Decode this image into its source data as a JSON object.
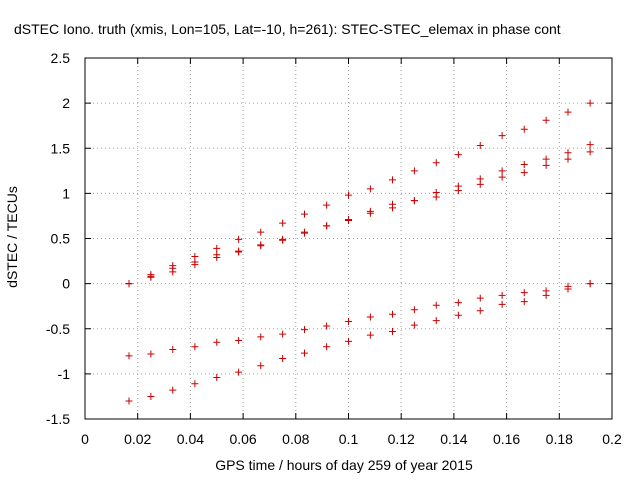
{
  "chart_data": {
    "type": "scatter",
    "title": "dSTEC Iono. truth (xmis, Lon=105, Lat=-10, h=261): STEC-STEC_elemax in phase cont",
    "xlabel": "GPS time / hours of day 259 of year 2015",
    "ylabel": "dSTEC  / TECUs",
    "xlim": [
      0,
      0.2
    ],
    "ylim": [
      -1.5,
      2.5
    ],
    "x_ticks": [
      "0",
      "0.02",
      "0.04",
      "0.06",
      "0.08",
      "0.1",
      "0.12",
      "0.14",
      "0.16",
      "0.18",
      "0.2"
    ],
    "y_ticks": [
      "-1.5",
      "-1",
      "-0.5",
      "0",
      "0.5",
      "1",
      "1.5",
      "2",
      "2.5"
    ],
    "grid": true,
    "legend": "none",
    "marker": "plus",
    "marker_color": "#cc0000",
    "x": [
      0.0167,
      0.025,
      0.0333,
      0.0417,
      0.05,
      0.0583,
      0.0667,
      0.075,
      0.0833,
      0.0917,
      0.1,
      0.1083,
      0.1167,
      0.125,
      0.1333,
      0.1417,
      0.15,
      0.1583,
      0.1667,
      0.175,
      0.1833,
      0.1917
    ],
    "series": [
      {
        "values": [
          0.0,
          0.1,
          0.2,
          0.3,
          0.39,
          0.49,
          0.57,
          0.67,
          0.77,
          0.87,
          0.98,
          1.05,
          1.15,
          1.25,
          1.34,
          1.43,
          1.53,
          1.64,
          1.71,
          1.81,
          1.9,
          2.0
        ]
      },
      {
        "values": [
          0.0,
          0.07,
          0.13,
          0.21,
          0.29,
          0.35,
          0.43,
          0.48,
          0.57,
          0.64,
          0.71,
          0.78,
          0.84,
          0.92,
          0.96,
          1.03,
          1.1,
          1.18,
          1.23,
          1.31,
          1.38,
          1.46
        ]
      },
      {
        "values": [
          0.0,
          0.08,
          0.17,
          0.24,
          0.32,
          0.36,
          0.42,
          0.49,
          0.56,
          0.64,
          0.7,
          0.8,
          0.88,
          0.92,
          1.01,
          1.08,
          1.16,
          1.25,
          1.32,
          1.38,
          1.45,
          1.54
        ]
      },
      {
        "values": [
          -0.8,
          -0.78,
          -0.73,
          -0.7,
          -0.65,
          -0.63,
          -0.59,
          -0.56,
          -0.51,
          -0.47,
          -0.42,
          -0.37,
          -0.34,
          -0.29,
          -0.24,
          -0.21,
          -0.16,
          -0.13,
          -0.1,
          -0.08,
          -0.03,
          0.0
        ]
      },
      {
        "values": [
          -1.3,
          -1.25,
          -1.18,
          -1.11,
          -1.04,
          -0.98,
          -0.91,
          -0.83,
          -0.77,
          -0.7,
          -0.64,
          -0.57,
          -0.53,
          -0.46,
          -0.41,
          -0.35,
          -0.3,
          -0.23,
          -0.2,
          -0.13,
          -0.06,
          0.0
        ]
      }
    ]
  }
}
